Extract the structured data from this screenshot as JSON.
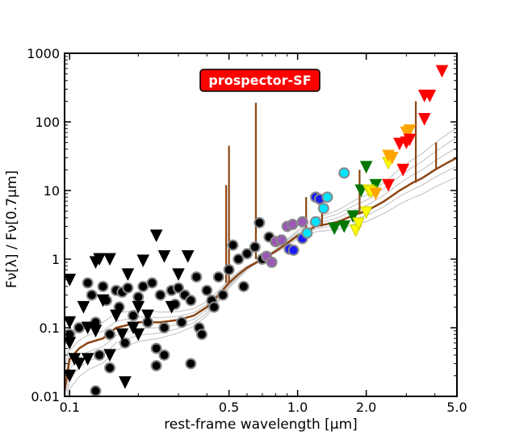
{
  "chart_data": {
    "type": "scatter",
    "title": "prospector-SF",
    "xlabel": "rest-frame wavelength [μm]",
    "ylabel": "Fν[λ] / Fν[0.7μm]",
    "xscale": "log",
    "yscale": "log",
    "xlim": [
      0.095,
      5.0
    ],
    "ylim": [
      0.01,
      1000
    ],
    "x_ticks": [
      0.1,
      0.5,
      1.0,
      2.0,
      5.0
    ],
    "x_tick_labels": [
      "0.1",
      "0.5",
      "1.0",
      "2.0",
      "5.0"
    ],
    "y_ticks": [
      0.01,
      0.1,
      1,
      10,
      100,
      1000
    ],
    "y_tick_labels": [
      "0.01",
      "0.1",
      "1",
      "10",
      "100",
      "1000"
    ],
    "colors": {
      "model_line": "#8B4513",
      "template_lines": "#c8c8c8",
      "badge_bg": "#ff0000"
    },
    "series": [
      {
        "name": "photometry-black",
        "marker": "circle",
        "color": "#000000",
        "points": [
          [
            0.12,
            0.45
          ],
          [
            0.125,
            0.3
          ],
          [
            0.13,
            0.12
          ],
          [
            0.135,
            0.04
          ],
          [
            0.14,
            0.4
          ],
          [
            0.145,
            0.25
          ],
          [
            0.15,
            0.08
          ],
          [
            0.16,
            0.35
          ],
          [
            0.165,
            0.2
          ],
          [
            0.17,
            0.33
          ],
          [
            0.175,
            0.06
          ],
          [
            0.18,
            0.38
          ],
          [
            0.19,
            0.15
          ],
          [
            0.2,
            0.28
          ],
          [
            0.21,
            0.4
          ],
          [
            0.22,
            0.12
          ],
          [
            0.23,
            0.45
          ],
          [
            0.24,
            0.05
          ],
          [
            0.25,
            0.3
          ],
          [
            0.26,
            0.1
          ],
          [
            0.28,
            0.35
          ],
          [
            0.29,
            0.22
          ],
          [
            0.3,
            0.38
          ],
          [
            0.31,
            0.12
          ],
          [
            0.32,
            0.3
          ],
          [
            0.34,
            0.25
          ],
          [
            0.36,
            0.55
          ],
          [
            0.37,
            0.1
          ],
          [
            0.38,
            0.08
          ],
          [
            0.4,
            0.35
          ],
          [
            0.42,
            0.25
          ],
          [
            0.43,
            0.2
          ],
          [
            0.45,
            0.55
          ],
          [
            0.47,
            0.3
          ],
          [
            0.5,
            0.7
          ],
          [
            0.52,
            1.6
          ],
          [
            0.55,
            1.0
          ],
          [
            0.58,
            0.4
          ],
          [
            0.6,
            1.2
          ],
          [
            0.65,
            1.5
          ],
          [
            0.68,
            3.4
          ],
          [
            0.7,
            1.0
          ],
          [
            0.75,
            2.1
          ],
          [
            0.15,
            0.026
          ],
          [
            0.13,
            0.012
          ],
          [
            0.24,
            0.028
          ],
          [
            0.34,
            0.03
          ],
          [
            0.1,
            0.08
          ],
          [
            0.11,
            0.1
          ],
          [
            0.26,
            0.04
          ]
        ]
      },
      {
        "name": "upper-limits-black",
        "marker": "triangle-down",
        "color": "#000000",
        "points": [
          [
            0.1,
            0.5
          ],
          [
            0.11,
            0.03
          ],
          [
            0.115,
            0.2
          ],
          [
            0.12,
            0.1
          ],
          [
            0.13,
            0.9
          ],
          [
            0.135,
            1.0
          ],
          [
            0.14,
            0.25
          ],
          [
            0.15,
            1.0
          ],
          [
            0.16,
            0.15
          ],
          [
            0.17,
            0.08
          ],
          [
            0.18,
            0.6
          ],
          [
            0.19,
            0.1
          ],
          [
            0.21,
            0.95
          ],
          [
            0.22,
            0.15
          ],
          [
            0.24,
            2.2
          ],
          [
            0.26,
            1.1
          ],
          [
            0.3,
            0.6
          ],
          [
            0.33,
            1.1
          ],
          [
            0.1,
            0.12
          ],
          [
            0.105,
            0.035
          ],
          [
            0.12,
            0.035
          ],
          [
            0.13,
            0.09
          ],
          [
            0.15,
            0.04
          ],
          [
            0.175,
            0.016
          ],
          [
            0.2,
            0.08
          ],
          [
            0.2,
            0.2
          ],
          [
            0.28,
            0.2
          ],
          [
            0.1,
            0.02
          ],
          [
            0.1,
            0.06
          ]
        ]
      },
      {
        "name": "photometry-purple",
        "marker": "circle",
        "color": "#9b59b6",
        "points": [
          [
            0.73,
            1.1
          ],
          [
            0.77,
            0.9
          ],
          [
            0.8,
            1.8
          ],
          [
            0.85,
            1.9
          ],
          [
            0.9,
            3.0
          ],
          [
            0.95,
            3.2
          ],
          [
            1.05,
            3.5
          ]
        ]
      },
      {
        "name": "photometry-blue",
        "marker": "circle",
        "color": "#1a1aff",
        "points": [
          [
            0.92,
            1.4
          ],
          [
            0.96,
            1.35
          ],
          [
            1.05,
            2.0
          ],
          [
            1.2,
            8.0
          ],
          [
            1.25,
            7.5
          ]
        ]
      },
      {
        "name": "photometry-cyan",
        "marker": "circle",
        "color": "#00e5ff",
        "points": [
          [
            1.1,
            2.4
          ],
          [
            1.2,
            3.5
          ],
          [
            1.3,
            5.5
          ],
          [
            1.35,
            8.0
          ],
          [
            1.6,
            18.0
          ]
        ]
      },
      {
        "name": "photometry-green",
        "marker": "triangle-down",
        "color": "#007700",
        "points": [
          [
            1.45,
            2.8
          ],
          [
            1.6,
            3.0
          ],
          [
            1.75,
            4.2
          ],
          [
            1.9,
            10.0
          ],
          [
            2.0,
            22.0
          ],
          [
            2.2,
            12.0
          ]
        ]
      },
      {
        "name": "photometry-yellow",
        "marker": "triangle-down",
        "color": "#ffff00",
        "points": [
          [
            1.8,
            2.6
          ],
          [
            1.85,
            3.3
          ],
          [
            2.0,
            4.8
          ],
          [
            2.05,
            10.0
          ],
          [
            2.1,
            9.5
          ],
          [
            2.5,
            25.0
          ]
        ]
      },
      {
        "name": "photometry-orange",
        "marker": "triangle-down",
        "color": "#ffa500",
        "points": [
          [
            2.2,
            9.0
          ],
          [
            2.5,
            32.0
          ],
          [
            2.6,
            30.0
          ],
          [
            3.0,
            70.0
          ],
          [
            3.1,
            75.0
          ]
        ]
      },
      {
        "name": "photometry-red",
        "marker": "triangle-down",
        "color": "#ff0000",
        "points": [
          [
            2.5,
            12.0
          ],
          [
            2.8,
            48.0
          ],
          [
            2.9,
            20.0
          ],
          [
            3.0,
            50.0
          ],
          [
            3.1,
            55.0
          ],
          [
            3.6,
            110.0
          ],
          [
            3.6,
            240.0
          ],
          [
            3.8,
            240.0
          ],
          [
            4.3,
            550.0
          ]
        ]
      }
    ],
    "model_curve": [
      [
        0.095,
        0.012
      ],
      [
        0.1,
        0.035
      ],
      [
        0.11,
        0.05
      ],
      [
        0.12,
        0.06
      ],
      [
        0.14,
        0.07
      ],
      [
        0.16,
        0.1
      ],
      [
        0.2,
        0.12
      ],
      [
        0.25,
        0.12
      ],
      [
        0.3,
        0.13
      ],
      [
        0.35,
        0.15
      ],
      [
        0.4,
        0.2
      ],
      [
        0.45,
        0.3
      ],
      [
        0.5,
        0.45
      ],
      [
        0.55,
        0.6
      ],
      [
        0.6,
        0.75
      ],
      [
        0.7,
        1.0
      ],
      [
        0.8,
        1.3
      ],
      [
        0.9,
        1.7
      ],
      [
        1.0,
        2.2
      ],
      [
        1.2,
        3.0
      ],
      [
        1.5,
        3.5
      ],
      [
        1.8,
        4.5
      ],
      [
        2.0,
        5.0
      ],
      [
        2.4,
        7.0
      ],
      [
        2.8,
        10.0
      ],
      [
        3.2,
        13.0
      ],
      [
        3.5,
        15.0
      ],
      [
        4.0,
        20.0
      ],
      [
        4.5,
        25.0
      ],
      [
        5.0,
        30.0
      ]
    ]
  }
}
